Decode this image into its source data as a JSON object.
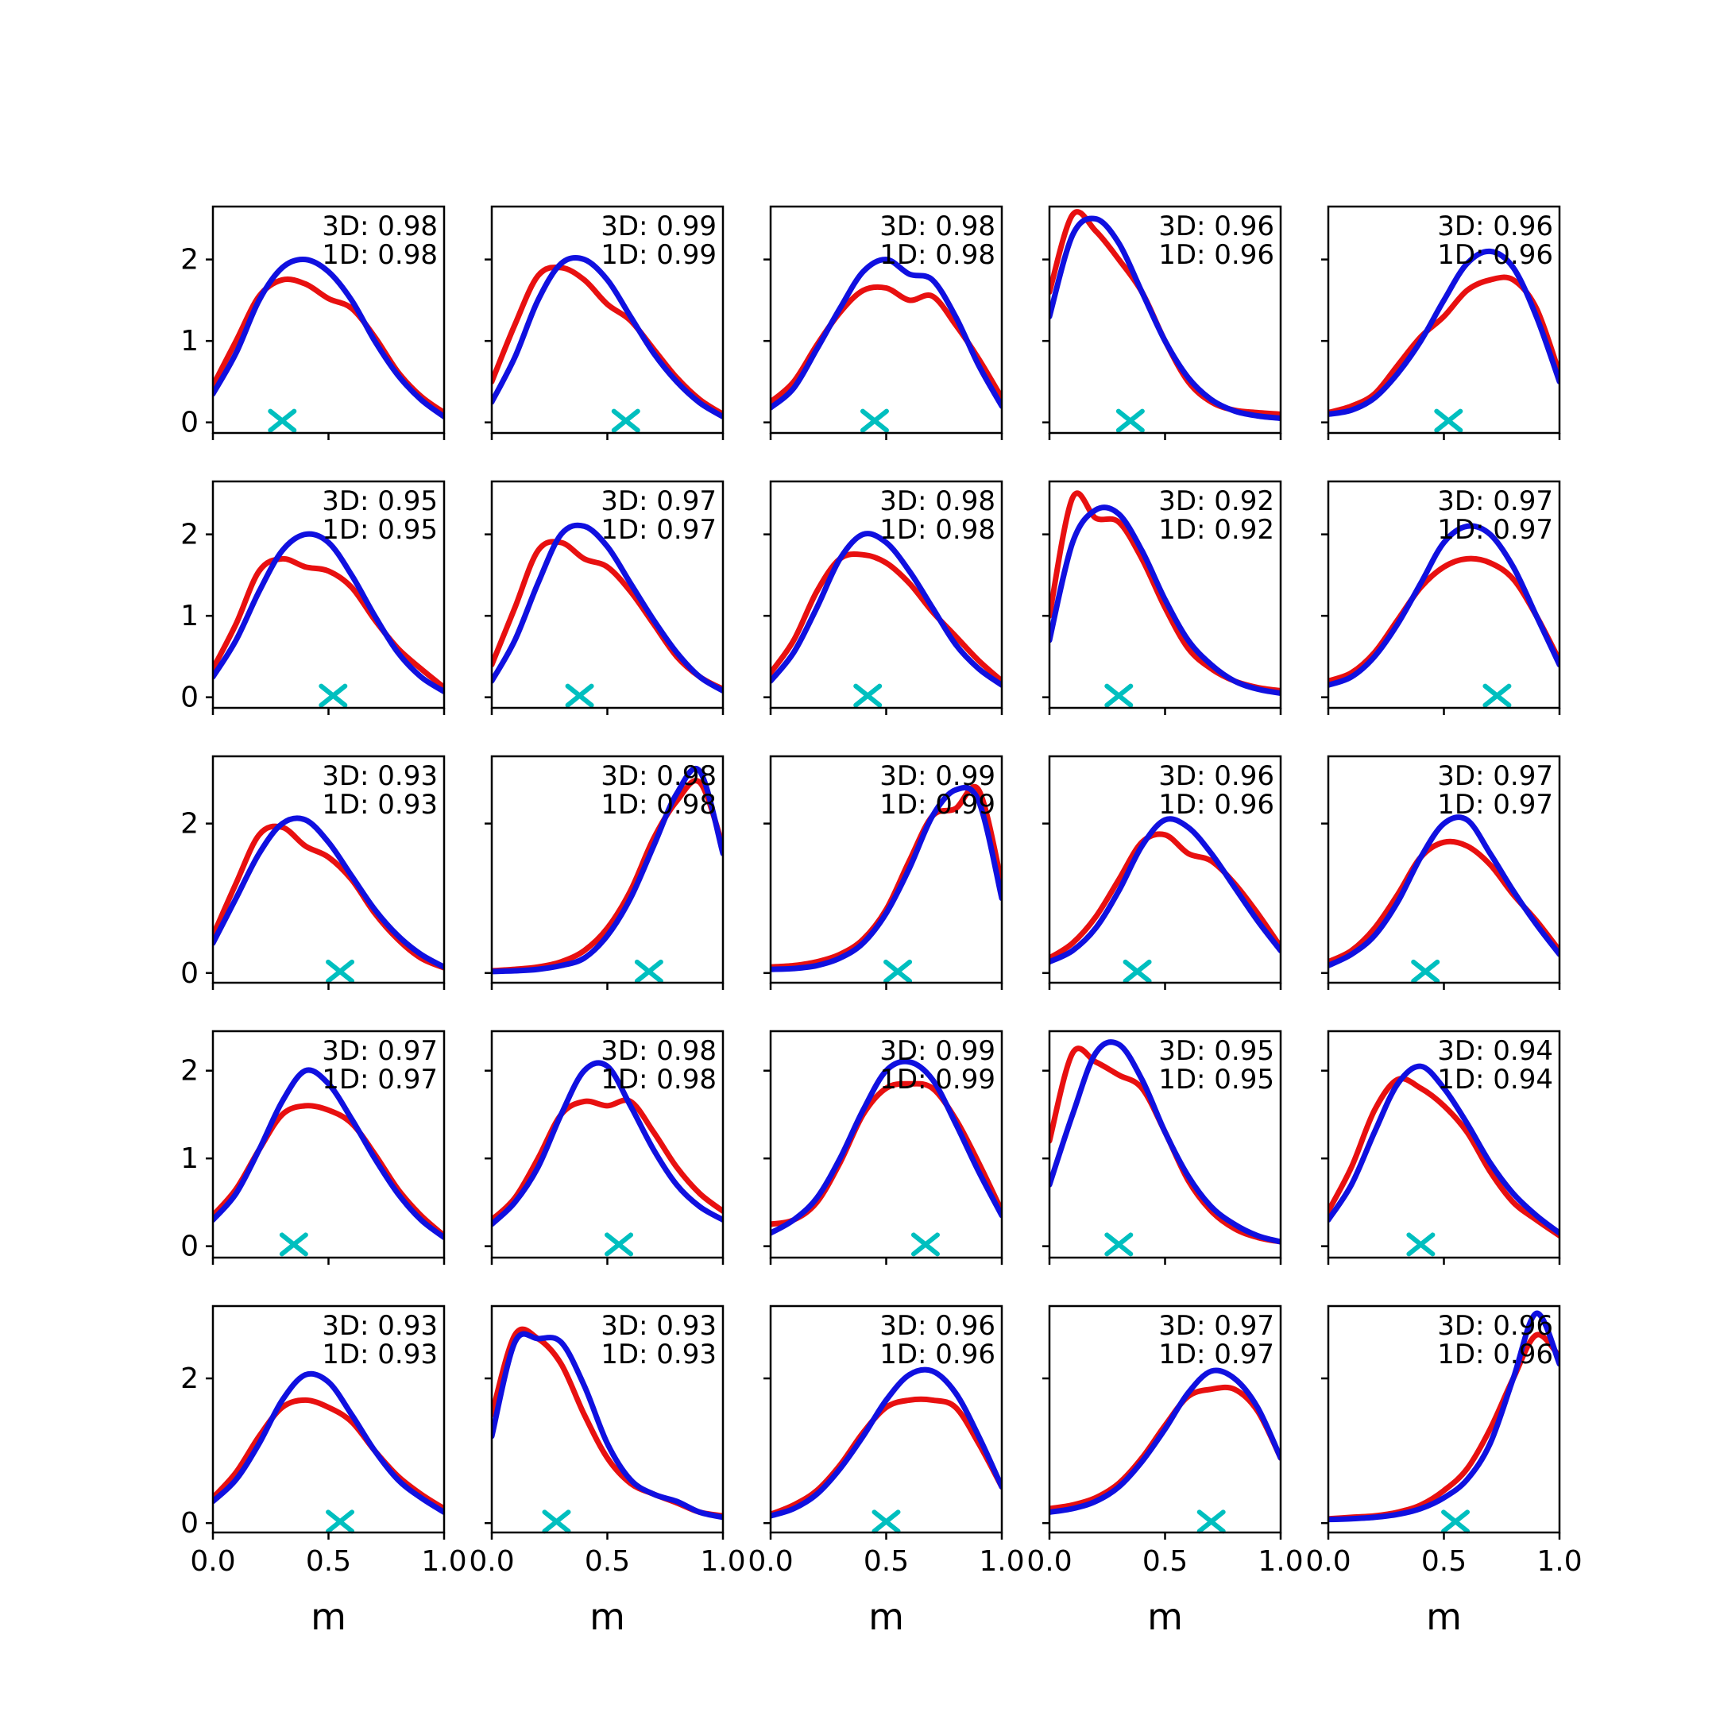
{
  "chart_data": {
    "type": "line",
    "title": "",
    "xlabel": "m",
    "x": [
      0,
      0.1,
      0.2,
      0.3,
      0.4,
      0.5,
      0.6,
      0.7,
      0.8,
      0.9,
      1.0
    ],
    "x_tick_labels": [
      "0.0",
      "0.5",
      "1.0"
    ],
    "x_tick_values": [
      0,
      0.5,
      1
    ],
    "xlim": [
      0,
      1
    ],
    "grid": {
      "rows": 5,
      "cols": 5
    },
    "legend_position": "none",
    "colors": {
      "red": "#e81010",
      "blue": "#1010e0",
      "marker": "#00bfbf",
      "axis": "#000000"
    },
    "rows": [
      {
        "yticks": [
          0,
          1,
          2
        ],
        "ylim": [
          -0.13,
          2.65
        ]
      },
      {
        "yticks": [
          0,
          1,
          2
        ],
        "ylim": [
          -0.13,
          2.65
        ]
      },
      {
        "yticks": [
          0,
          2
        ],
        "ylim": [
          -0.13,
          2.9
        ]
      },
      {
        "yticks": [
          0,
          1,
          2
        ],
        "ylim": [
          -0.13,
          2.45
        ]
      },
      {
        "yticks": [
          0,
          2
        ],
        "ylim": [
          -0.13,
          3.0
        ]
      }
    ],
    "subplots": [
      {
        "ann_3d": "3D: 0.98",
        "ann_1d": "1D: 0.98",
        "marker_x": 0.3,
        "red": [
          0.45,
          1.0,
          1.55,
          1.75,
          1.7,
          1.52,
          1.4,
          1.05,
          0.62,
          0.32,
          0.12
        ],
        "blue": [
          0.35,
          0.85,
          1.5,
          1.9,
          2.0,
          1.85,
          1.5,
          1.0,
          0.58,
          0.28,
          0.07
        ]
      },
      {
        "ann_3d": "3D: 0.99",
        "ann_1d": "1D: 0.99",
        "marker_x": 0.58,
        "red": [
          0.5,
          1.2,
          1.8,
          1.9,
          1.75,
          1.45,
          1.25,
          0.9,
          0.55,
          0.28,
          0.1
        ],
        "blue": [
          0.25,
          0.8,
          1.5,
          1.95,
          2.0,
          1.75,
          1.3,
          0.85,
          0.5,
          0.24,
          0.07
        ]
      },
      {
        "ann_3d": "3D: 0.98",
        "ann_1d": "1D: 0.98",
        "marker_x": 0.45,
        "red": [
          0.25,
          0.5,
          0.95,
          1.35,
          1.62,
          1.65,
          1.5,
          1.55,
          1.2,
          0.78,
          0.3
        ],
        "blue": [
          0.18,
          0.42,
          0.9,
          1.4,
          1.85,
          2.0,
          1.82,
          1.75,
          1.3,
          0.7,
          0.2
        ]
      },
      {
        "ann_3d": "3D: 0.96",
        "ann_1d": "1D: 0.96",
        "marker_x": 0.35,
        "red": [
          1.6,
          2.55,
          2.35,
          2.0,
          1.6,
          1.0,
          0.5,
          0.25,
          0.15,
          0.12,
          0.1
        ],
        "blue": [
          1.3,
          2.3,
          2.5,
          2.2,
          1.6,
          1.0,
          0.55,
          0.28,
          0.14,
          0.08,
          0.05
        ]
      },
      {
        "ann_3d": "3D: 0.96",
        "ann_1d": "1D: 0.96",
        "marker_x": 0.52,
        "red": [
          0.12,
          0.2,
          0.35,
          0.7,
          1.05,
          1.3,
          1.62,
          1.75,
          1.75,
          1.4,
          0.6
        ],
        "blue": [
          0.1,
          0.15,
          0.3,
          0.6,
          1.0,
          1.5,
          1.95,
          2.1,
          1.9,
          1.3,
          0.5
        ]
      },
      {
        "ann_3d": "3D: 0.95",
        "ann_1d": "1D: 0.95",
        "marker_x": 0.52,
        "red": [
          0.35,
          0.9,
          1.55,
          1.7,
          1.6,
          1.55,
          1.35,
          0.95,
          0.6,
          0.35,
          0.12
        ],
        "blue": [
          0.25,
          0.7,
          1.3,
          1.8,
          2.0,
          1.9,
          1.5,
          1.0,
          0.55,
          0.25,
          0.07
        ]
      },
      {
        "ann_3d": "3D: 0.97",
        "ann_1d": "1D: 0.97",
        "marker_x": 0.38,
        "red": [
          0.4,
          1.1,
          1.8,
          1.9,
          1.7,
          1.6,
          1.3,
          0.9,
          0.5,
          0.25,
          0.1
        ],
        "blue": [
          0.2,
          0.7,
          1.4,
          2.0,
          2.1,
          1.85,
          1.4,
          0.95,
          0.55,
          0.25,
          0.08
        ]
      },
      {
        "ann_3d": "3D: 0.98",
        "ann_1d": "1D: 0.98",
        "marker_x": 0.42,
        "red": [
          0.3,
          0.7,
          1.3,
          1.7,
          1.75,
          1.65,
          1.4,
          1.05,
          0.75,
          0.45,
          0.2
        ],
        "blue": [
          0.2,
          0.55,
          1.1,
          1.7,
          2.0,
          1.9,
          1.55,
          1.1,
          0.65,
          0.35,
          0.15
        ]
      },
      {
        "ann_3d": "3D: 0.92",
        "ann_1d": "1D: 0.92",
        "marker_x": 0.3,
        "red": [
          1.0,
          2.45,
          2.2,
          2.15,
          1.7,
          1.1,
          0.6,
          0.35,
          0.2,
          0.12,
          0.08
        ],
        "blue": [
          0.7,
          1.9,
          2.3,
          2.25,
          1.8,
          1.2,
          0.7,
          0.4,
          0.2,
          0.1,
          0.05
        ]
      },
      {
        "ann_3d": "3D: 0.97",
        "ann_1d": "1D: 0.97",
        "marker_x": 0.73,
        "red": [
          0.2,
          0.3,
          0.55,
          0.95,
          1.35,
          1.6,
          1.7,
          1.65,
          1.45,
          1.0,
          0.45
        ],
        "blue": [
          0.15,
          0.25,
          0.5,
          0.9,
          1.4,
          1.9,
          2.1,
          2.0,
          1.6,
          1.0,
          0.4
        ]
      },
      {
        "ann_3d": "3D: 0.93",
        "ann_1d": "1D: 0.93",
        "marker_x": 0.55,
        "red": [
          0.5,
          1.2,
          1.85,
          1.95,
          1.7,
          1.55,
          1.25,
          0.8,
          0.45,
          0.2,
          0.07
        ],
        "blue": [
          0.4,
          1.0,
          1.6,
          2.0,
          2.05,
          1.75,
          1.3,
          0.85,
          0.5,
          0.25,
          0.08
        ]
      },
      {
        "ann_3d": "3D: 0.98",
        "ann_1d": "1D: 0.98",
        "marker_x": 0.68,
        "red": [
          0.03,
          0.05,
          0.08,
          0.15,
          0.3,
          0.6,
          1.1,
          1.8,
          2.3,
          2.55,
          1.7
        ],
        "blue": [
          0.02,
          0.03,
          0.05,
          0.1,
          0.2,
          0.5,
          1.0,
          1.7,
          2.4,
          2.7,
          1.6
        ]
      },
      {
        "ann_3d": "3D: 0.99",
        "ann_1d": "1D: 0.99",
        "marker_x": 0.55,
        "red": [
          0.08,
          0.1,
          0.15,
          0.25,
          0.45,
          0.85,
          1.5,
          2.1,
          2.2,
          2.45,
          1.2
        ],
        "blue": [
          0.05,
          0.06,
          0.1,
          0.2,
          0.4,
          0.8,
          1.4,
          2.1,
          2.45,
          2.3,
          1.0
        ]
      },
      {
        "ann_3d": "3D: 0.96",
        "ann_1d": "1D: 0.96",
        "marker_x": 0.38,
        "red": [
          0.2,
          0.4,
          0.75,
          1.25,
          1.75,
          1.85,
          1.6,
          1.5,
          1.2,
          0.8,
          0.35
        ],
        "blue": [
          0.15,
          0.3,
          0.6,
          1.1,
          1.7,
          2.05,
          1.95,
          1.6,
          1.15,
          0.7,
          0.3
        ]
      },
      {
        "ann_3d": "3D: 0.97",
        "ann_1d": "1D: 0.97",
        "marker_x": 0.42,
        "red": [
          0.15,
          0.3,
          0.6,
          1.05,
          1.55,
          1.75,
          1.7,
          1.45,
          1.05,
          0.7,
          0.3
        ],
        "blue": [
          0.1,
          0.25,
          0.5,
          0.95,
          1.55,
          2.0,
          2.05,
          1.6,
          1.1,
          0.65,
          0.25
        ]
      },
      {
        "ann_3d": "3D: 0.97",
        "ann_1d": "1D: 0.97",
        "marker_x": 0.35,
        "red": [
          0.35,
          0.65,
          1.1,
          1.5,
          1.6,
          1.55,
          1.4,
          1.05,
          0.65,
          0.35,
          0.12
        ],
        "blue": [
          0.3,
          0.6,
          1.1,
          1.65,
          2.0,
          1.85,
          1.45,
          1.0,
          0.6,
          0.3,
          0.1
        ]
      },
      {
        "ann_3d": "3D: 0.98",
        "ann_1d": "1D: 0.98",
        "marker_x": 0.55,
        "red": [
          0.3,
          0.55,
          1.0,
          1.5,
          1.65,
          1.6,
          1.65,
          1.3,
          0.9,
          0.6,
          0.4
        ],
        "blue": [
          0.25,
          0.5,
          0.9,
          1.5,
          2.0,
          2.05,
          1.6,
          1.1,
          0.7,
          0.45,
          0.3
        ]
      },
      {
        "ann_3d": "3D: 0.99",
        "ann_1d": "1D: 0.99",
        "marker_x": 0.67,
        "red": [
          0.25,
          0.3,
          0.5,
          0.95,
          1.5,
          1.8,
          1.85,
          1.8,
          1.45,
          0.95,
          0.4
        ],
        "blue": [
          0.15,
          0.3,
          0.55,
          1.0,
          1.55,
          2.0,
          2.1,
          1.9,
          1.4,
          0.85,
          0.35
        ]
      },
      {
        "ann_3d": "3D: 0.95",
        "ann_1d": "1D: 0.95",
        "marker_x": 0.3,
        "red": [
          1.2,
          2.2,
          2.1,
          1.95,
          1.8,
          1.3,
          0.75,
          0.4,
          0.2,
          0.1,
          0.05
        ],
        "blue": [
          0.7,
          1.5,
          2.2,
          2.3,
          1.9,
          1.3,
          0.8,
          0.45,
          0.25,
          0.12,
          0.05
        ]
      },
      {
        "ann_3d": "3D: 0.94",
        "ann_1d": "1D: 0.94",
        "marker_x": 0.4,
        "red": [
          0.4,
          0.9,
          1.55,
          1.9,
          1.8,
          1.6,
          1.3,
          0.85,
          0.5,
          0.3,
          0.12
        ],
        "blue": [
          0.3,
          0.7,
          1.3,
          1.85,
          2.05,
          1.8,
          1.4,
          0.95,
          0.6,
          0.35,
          0.15
        ]
      },
      {
        "ann_3d": "3D: 0.93",
        "ann_1d": "1D: 0.93",
        "marker_x": 0.55,
        "red": [
          0.35,
          0.7,
          1.2,
          1.6,
          1.7,
          1.6,
          1.4,
          1.0,
          0.65,
          0.4,
          0.2
        ],
        "blue": [
          0.3,
          0.6,
          1.1,
          1.7,
          2.05,
          1.95,
          1.5,
          1.0,
          0.6,
          0.35,
          0.15
        ]
      },
      {
        "ann_3d": "3D: 0.93",
        "ann_1d": "1D: 0.93",
        "marker_x": 0.28,
        "red": [
          1.5,
          2.6,
          2.55,
          2.2,
          1.5,
          0.9,
          0.55,
          0.4,
          0.28,
          0.15,
          0.1
        ],
        "blue": [
          1.2,
          2.5,
          2.55,
          2.5,
          1.9,
          1.1,
          0.6,
          0.4,
          0.3,
          0.15,
          0.08
        ]
      },
      {
        "ann_3d": "3D: 0.96",
        "ann_1d": "1D: 0.96",
        "marker_x": 0.5,
        "red": [
          0.12,
          0.25,
          0.45,
          0.8,
          1.25,
          1.6,
          1.7,
          1.7,
          1.6,
          1.1,
          0.5
        ],
        "blue": [
          0.1,
          0.2,
          0.4,
          0.75,
          1.2,
          1.7,
          2.05,
          2.1,
          1.8,
          1.2,
          0.5
        ]
      },
      {
        "ann_3d": "3D: 0.97",
        "ann_1d": "1D: 0.97",
        "marker_x": 0.7,
        "red": [
          0.2,
          0.25,
          0.35,
          0.55,
          0.9,
          1.35,
          1.75,
          1.85,
          1.85,
          1.55,
          0.9
        ],
        "blue": [
          0.15,
          0.2,
          0.3,
          0.5,
          0.85,
          1.3,
          1.8,
          2.1,
          2.0,
          1.6,
          0.9
        ]
      },
      {
        "ann_3d": "3D: 0.96",
        "ann_1d": "1D: 0.96",
        "marker_x": 0.55,
        "red": [
          0.06,
          0.08,
          0.1,
          0.15,
          0.25,
          0.45,
          0.75,
          1.3,
          2.0,
          2.6,
          2.3
        ],
        "blue": [
          0.05,
          0.06,
          0.08,
          0.12,
          0.2,
          0.35,
          0.6,
          1.1,
          2.0,
          2.9,
          2.2
        ]
      }
    ]
  }
}
